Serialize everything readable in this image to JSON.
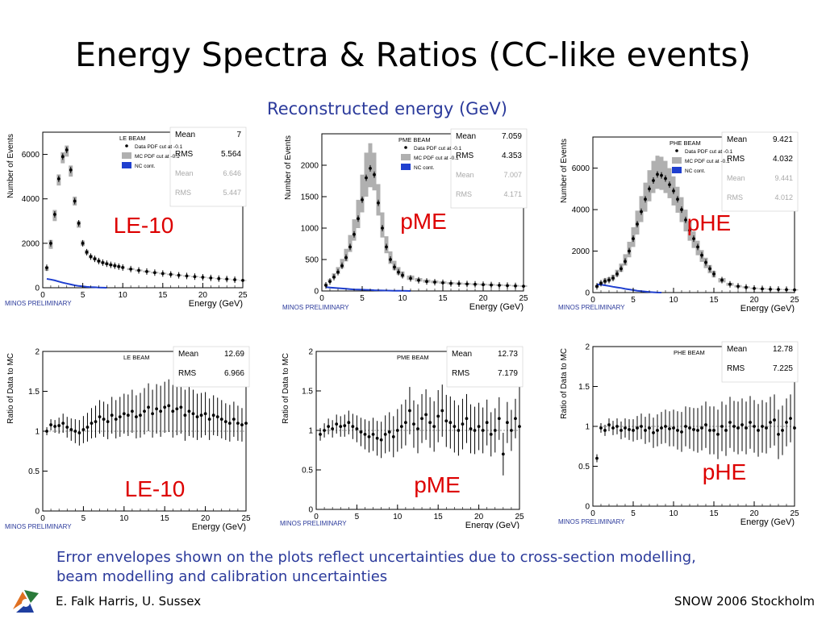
{
  "slide": {
    "title": "Energy Spectra & Ratios (CC-like events)",
    "subtitle": "Reconstructed energy (GeV)",
    "caption_line1": "Error envelopes shown on the plots reflect uncertainties due to cross-section modelling,",
    "caption_line2": "beam modelling and calibration uncertainties",
    "footer_left": "E. Falk Harris, U. Sussex",
    "footer_right": "SNOW 2006 Stockholm"
  },
  "colors": {
    "accent_text": "#2b3a9b",
    "overlay_red": "#dd0000",
    "mc_band": "#b0b0b0",
    "nc_blue": "#1f3fcf"
  },
  "chart_data": [
    {
      "type": "scatter",
      "beam": "LE BEAM",
      "overlay": "LE-10",
      "xlabel": "Energy (GeV)",
      "ylabel": "Number of Events",
      "xlim": [
        0,
        25
      ],
      "ylim": [
        0,
        7000
      ],
      "xticks": [
        0,
        5,
        10,
        15,
        20,
        25
      ],
      "yticks": [
        0,
        2000,
        4000,
        6000
      ],
      "stats": [
        {
          "k": "Mean",
          "v": "7",
          "dim": false
        },
        {
          "k": "RMS",
          "v": "5.564",
          "dim": false
        },
        {
          "k": "Mean",
          "v": "6.646",
          "dim": true
        },
        {
          "k": "RMS",
          "v": "5.447",
          "dim": true
        }
      ],
      "legend": [
        "Data PDF cut at -0.1",
        "MC   PDF cut at -0.1",
        "NC cont."
      ],
      "watermark": "MINOS PRELIMINARY",
      "x": [
        0.5,
        1,
        1.5,
        2,
        2.5,
        3,
        3.5,
        4,
        4.5,
        5,
        5.5,
        6,
        6.5,
        7,
        7.5,
        8,
        8.5,
        9,
        9.5,
        10,
        11,
        12,
        13,
        14,
        15,
        16,
        17,
        18,
        19,
        20,
        21,
        22,
        23,
        24,
        25
      ],
      "data": [
        900,
        2000,
        3300,
        4900,
        5900,
        6200,
        5300,
        3900,
        2900,
        2000,
        1600,
        1400,
        1300,
        1200,
        1130,
        1080,
        1030,
        990,
        950,
        910,
        840,
        780,
        730,
        680,
        640,
        600,
        560,
        530,
        500,
        470,
        440,
        410,
        390,
        360,
        330
      ],
      "mc_lo": [
        760,
        1750,
        3000,
        4600,
        5600,
        5900,
        5000,
        3700,
        2700,
        1880,
        1500,
        1320,
        1230,
        1130,
        1070,
        1020,
        975,
        935,
        895,
        860,
        795,
        740,
        690,
        645,
        605,
        568,
        530,
        502,
        474,
        446,
        418,
        390,
        370,
        342,
        314
      ],
      "mc_hi": [
        960,
        2150,
        3500,
        5100,
        6100,
        6400,
        5500,
        4100,
        3000,
        2120,
        1700,
        1480,
        1370,
        1270,
        1190,
        1140,
        1085,
        1045,
        1005,
        960,
        885,
        820,
        770,
        715,
        675,
        632,
        590,
        558,
        526,
        494,
        462,
        430,
        410,
        378,
        346
      ],
      "nc": [
        400,
        370,
        330,
        280,
        230,
        190,
        150,
        110,
        80,
        60,
        40,
        30,
        20,
        10,
        5,
        0
      ]
    },
    {
      "type": "scatter",
      "beam": "PME BEAM",
      "overlay": "pME",
      "xlabel": "Energy (GeV)",
      "ylabel": "Number of Events",
      "xlim": [
        0,
        25
      ],
      "ylim": [
        0,
        2500
      ],
      "xticks": [
        0,
        5,
        10,
        15,
        20,
        25
      ],
      "yticks": [
        0,
        500,
        1000,
        1500,
        2000
      ],
      "stats": [
        {
          "k": "Mean",
          "v": "7.059",
          "dim": false
        },
        {
          "k": "RMS",
          "v": "4.353",
          "dim": false
        },
        {
          "k": "Mean",
          "v": "7.007",
          "dim": true
        },
        {
          "k": "RMS",
          "v": "4.171",
          "dim": true
        }
      ],
      "legend": [
        "Data PDF cut at -0.1",
        "MC   PDF cut at -0.1",
        "NC cont."
      ],
      "watermark": "MINOS PRELIMINARY",
      "x": [
        0.5,
        1,
        1.5,
        2,
        2.5,
        3,
        3.5,
        4,
        4.5,
        5,
        5.5,
        6,
        6.5,
        7,
        7.5,
        8,
        8.5,
        9,
        9.5,
        10,
        11,
        12,
        13,
        14,
        15,
        16,
        17,
        18,
        19,
        20,
        21,
        22,
        23,
        24,
        25
      ],
      "data": [
        90,
        150,
        220,
        300,
        400,
        530,
        700,
        900,
        1150,
        1450,
        1800,
        1950,
        1850,
        1400,
        1000,
        700,
        500,
        380,
        300,
        250,
        200,
        170,
        150,
        140,
        130,
        120,
        115,
        110,
        105,
        100,
        95,
        90,
        85,
        80,
        75
      ],
      "mc_lo": [
        80,
        140,
        200,
        270,
        360,
        470,
        620,
        800,
        1000,
        1250,
        1500,
        1650,
        1600,
        1200,
        850,
        600,
        430,
        330,
        260,
        215,
        175,
        150,
        133,
        123,
        115,
        106,
        101,
        97,
        93,
        88,
        84,
        80,
        76,
        71,
        67
      ],
      "mc_hi": [
        120,
        190,
        280,
        380,
        510,
        670,
        890,
        1140,
        1450,
        1850,
        2200,
        2350,
        2200,
        1700,
        1250,
        870,
        630,
        480,
        380,
        310,
        245,
        205,
        180,
        165,
        152,
        140,
        134,
        128,
        122,
        117,
        111,
        106,
        100,
        94,
        88
      ],
      "nc": [
        60,
        55,
        50,
        45,
        40,
        35,
        30,
        25,
        22,
        20,
        18,
        15,
        12,
        10,
        8,
        6,
        5,
        4,
        3,
        2,
        1,
        0
      ]
    },
    {
      "type": "scatter",
      "beam": "PHE BEAM",
      "overlay": "pHE",
      "xlabel": "Energy (GeV)",
      "ylabel": "Number of Events",
      "xlim": [
        0,
        25
      ],
      "ylim": [
        0,
        7500
      ],
      "xticks": [
        0,
        5,
        10,
        15,
        20,
        25
      ],
      "yticks": [
        0,
        2000,
        4000,
        6000
      ],
      "stats": [
        {
          "k": "Mean",
          "v": "9.421",
          "dim": false
        },
        {
          "k": "RMS",
          "v": "4.032",
          "dim": false
        },
        {
          "k": "Mean",
          "v": "9.441",
          "dim": true
        },
        {
          "k": "RMS",
          "v": "4.012",
          "dim": true
        }
      ],
      "legend": [
        "Data PDF cut at -0.1",
        "MC   PDF cut at -0.1",
        "NC cont."
      ],
      "watermark": "MINOS PRELIMINARY",
      "x": [
        0.5,
        1,
        1.5,
        2,
        2.5,
        3,
        3.5,
        4,
        4.5,
        5,
        5.5,
        6,
        6.5,
        7,
        7.5,
        8,
        8.5,
        9,
        9.5,
        10,
        10.5,
        11,
        11.5,
        12,
        12.5,
        13,
        13.5,
        14,
        14.5,
        15,
        16,
        17,
        18,
        19,
        20,
        21,
        22,
        23,
        24,
        25
      ],
      "data": [
        300,
        450,
        550,
        600,
        700,
        900,
        1150,
        1500,
        2000,
        2600,
        3300,
        3900,
        4500,
        5000,
        5400,
        5700,
        5650,
        5500,
        5200,
        4900,
        4500,
        4000,
        3500,
        3000,
        2600,
        2200,
        1800,
        1450,
        1150,
        900,
        600,
        400,
        300,
        250,
        200,
        180,
        160,
        150,
        140,
        130
      ],
      "mc_lo": [
        230,
        350,
        450,
        520,
        600,
        780,
        1000,
        1300,
        1700,
        2200,
        2800,
        3400,
        3900,
        4400,
        4800,
        5000,
        4950,
        4800,
        4550,
        4200,
        3850,
        3400,
        2950,
        2500,
        2150,
        1800,
        1480,
        1180,
        930,
        730,
        490,
        330,
        250,
        210,
        170,
        150,
        135,
        125,
        115,
        105
      ],
      "mc_hi": [
        370,
        540,
        680,
        740,
        860,
        1100,
        1400,
        1850,
        2450,
        3150,
        3950,
        4650,
        5300,
        5900,
        6350,
        6600,
        6550,
        6350,
        6000,
        5600,
        5100,
        4600,
        4000,
        3450,
        2950,
        2500,
        2050,
        1680,
        1330,
        1050,
        700,
        470,
        360,
        300,
        240,
        215,
        195,
        180,
        168,
        156
      ],
      "nc": [
        400,
        380,
        350,
        320,
        280,
        250,
        220,
        180,
        150,
        120,
        90,
        70,
        50,
        30,
        15,
        5,
        0
      ]
    },
    {
      "type": "scatter",
      "beam": "LE BEAM",
      "overlay": "LE-10",
      "xlabel": "Energy (GeV)",
      "ylabel": "Ratio of Data to MC",
      "xlim": [
        0,
        25
      ],
      "ylim": [
        0,
        2
      ],
      "xticks": [
        0,
        5,
        10,
        15,
        20,
        25
      ],
      "yticks": [
        0,
        0.5,
        1,
        1.5,
        2
      ],
      "stats": [
        {
          "k": "Mean",
          "v": "12.69",
          "dim": false
        },
        {
          "k": "RMS",
          "v": "6.966",
          "dim": false
        }
      ],
      "watermark": "MINOS PRELIMINARY",
      "x": [
        0.5,
        1,
        1.5,
        2,
        2.5,
        3,
        3.5,
        4,
        4.5,
        5,
        5.5,
        6,
        6.5,
        7,
        7.5,
        8,
        8.5,
        9,
        9.5,
        10,
        10.5,
        11,
        11.5,
        12,
        12.5,
        13,
        13.5,
        14,
        14.5,
        15,
        15.5,
        16,
        16.5,
        17,
        17.5,
        18,
        18.5,
        19,
        19.5,
        20,
        20.5,
        21,
        21.5,
        22,
        22.5,
        23,
        23.5,
        24,
        24.5,
        25
      ],
      "y": [
        1.0,
        1.08,
        1.06,
        1.07,
        1.1,
        1.05,
        1.02,
        1.0,
        0.98,
        1.02,
        1.05,
        1.1,
        1.12,
        1.18,
        1.15,
        1.12,
        1.2,
        1.15,
        1.18,
        1.22,
        1.2,
        1.25,
        1.18,
        1.2,
        1.25,
        1.3,
        1.22,
        1.28,
        1.25,
        1.3,
        1.32,
        1.25,
        1.28,
        1.3,
        1.2,
        1.25,
        1.22,
        1.18,
        1.2,
        1.22,
        1.15,
        1.2,
        1.18,
        1.15,
        1.12,
        1.1,
        1.15,
        1.1,
        1.08,
        1.1
      ],
      "err": [
        0.05,
        0.07,
        0.08,
        0.1,
        0.12,
        0.13,
        0.14,
        0.15,
        0.16,
        0.17,
        0.18,
        0.19,
        0.2,
        0.21,
        0.22,
        0.22,
        0.23,
        0.24,
        0.25,
        0.25,
        0.26,
        0.27,
        0.27,
        0.28,
        0.29,
        0.3,
        0.3,
        0.31,
        0.32,
        0.32,
        0.33,
        0.33,
        0.33,
        0.33,
        0.32,
        0.31,
        0.3,
        0.29,
        0.28,
        0.27,
        0.26,
        0.25,
        0.24,
        0.24,
        0.23,
        0.23,
        0.22,
        0.22,
        0.21,
        0.21
      ]
    },
    {
      "type": "scatter",
      "beam": "PME BEAM",
      "overlay": "pME",
      "xlabel": "Energy (GeV)",
      "ylabel": "Ratio of Data to MC",
      "xlim": [
        0,
        25
      ],
      "ylim": [
        0,
        2
      ],
      "xticks": [
        0,
        5,
        10,
        15,
        20,
        25
      ],
      "yticks": [
        0,
        0.5,
        1,
        1.5,
        2
      ],
      "stats": [
        {
          "k": "Mean",
          "v": "12.73",
          "dim": false
        },
        {
          "k": "RMS",
          "v": "7.179",
          "dim": false
        }
      ],
      "watermark": "MINOS PRELIMINARY",
      "x": [
        0.5,
        1,
        1.5,
        2,
        2.5,
        3,
        3.5,
        4,
        4.5,
        5,
        5.5,
        6,
        6.5,
        7,
        7.5,
        8,
        8.5,
        9,
        9.5,
        10,
        10.5,
        11,
        11.5,
        12,
        12.5,
        13,
        13.5,
        14,
        14.5,
        15,
        15.5,
        16,
        16.5,
        17,
        17.5,
        18,
        18.5,
        19,
        19.5,
        20,
        20.5,
        21,
        21.5,
        22,
        22.5,
        23,
        23.5,
        24,
        24.5,
        25
      ],
      "y": [
        0.95,
        1.0,
        1.05,
        1.02,
        1.08,
        1.05,
        1.06,
        1.1,
        1.05,
        1.02,
        0.98,
        0.95,
        0.92,
        0.95,
        0.9,
        0.88,
        0.95,
        0.98,
        0.92,
        1.0,
        1.05,
        1.1,
        1.25,
        1.08,
        1.02,
        1.15,
        1.2,
        1.1,
        1.05,
        1.18,
        1.25,
        1.12,
        1.1,
        1.05,
        1.0,
        1.08,
        1.15,
        1.02,
        1.0,
        1.05,
        1.0,
        1.1,
        0.95,
        1.0,
        1.15,
        0.7,
        1.1,
        1.0,
        1.15,
        1.05
      ],
      "err": [
        0.08,
        0.09,
        0.1,
        0.11,
        0.12,
        0.13,
        0.14,
        0.15,
        0.16,
        0.17,
        0.18,
        0.19,
        0.2,
        0.21,
        0.22,
        0.23,
        0.24,
        0.25,
        0.26,
        0.27,
        0.28,
        0.29,
        0.3,
        0.3,
        0.31,
        0.31,
        0.32,
        0.32,
        0.32,
        0.33,
        0.33,
        0.33,
        0.33,
        0.33,
        0.32,
        0.32,
        0.31,
        0.31,
        0.3,
        0.3,
        0.29,
        0.29,
        0.28,
        0.28,
        0.27,
        0.27,
        0.26,
        0.26,
        0.25,
        0.25
      ]
    },
    {
      "type": "scatter",
      "beam": "PHE BEAM",
      "overlay": "pHE",
      "xlabel": "Energy (GeV)",
      "ylabel": "Ratio of Data to MC",
      "xlim": [
        0,
        25
      ],
      "ylim": [
        0,
        2
      ],
      "xticks": [
        0,
        5,
        10,
        15,
        20,
        25
      ],
      "yticks": [
        0,
        0.5,
        1,
        1.5,
        2
      ],
      "stats": [
        {
          "k": "Mean",
          "v": "12.78",
          "dim": false
        },
        {
          "k": "RMS",
          "v": "7.225",
          "dim": false
        }
      ],
      "watermark": "MINOS PRELIMINARY",
      "x": [
        0.5,
        1,
        1.5,
        2,
        2.5,
        3,
        3.5,
        4,
        4.5,
        5,
        5.5,
        6,
        6.5,
        7,
        7.5,
        8,
        8.5,
        9,
        9.5,
        10,
        10.5,
        11,
        11.5,
        12,
        12.5,
        13,
        13.5,
        14,
        14.5,
        15,
        15.5,
        16,
        16.5,
        17,
        17.5,
        18,
        18.5,
        19,
        19.5,
        20,
        20.5,
        21,
        21.5,
        22,
        22.5,
        23,
        23.5,
        24,
        24.5,
        25
      ],
      "y": [
        0.6,
        0.98,
        0.95,
        1.02,
        0.98,
        1.0,
        0.95,
        0.98,
        0.96,
        0.95,
        0.98,
        1.0,
        0.95,
        0.98,
        0.92,
        0.95,
        0.98,
        1.0,
        0.97,
        0.98,
        0.95,
        0.93,
        1.0,
        0.98,
        0.96,
        0.95,
        0.98,
        1.02,
        0.95,
        0.95,
        0.9,
        1.0,
        0.95,
        1.05,
        1.0,
        0.98,
        1.02,
        0.98,
        1.05,
        1.0,
        0.95,
        1.0,
        0.98,
        1.05,
        1.08,
        0.9,
        0.95,
        1.05,
        1.1,
        0.98
      ],
      "err": [
        0.05,
        0.06,
        0.07,
        0.08,
        0.09,
        0.1,
        0.11,
        0.12,
        0.13,
        0.14,
        0.15,
        0.16,
        0.17,
        0.18,
        0.19,
        0.2,
        0.2,
        0.21,
        0.22,
        0.23,
        0.24,
        0.25,
        0.25,
        0.26,
        0.27,
        0.28,
        0.28,
        0.29,
        0.3,
        0.3,
        0.31,
        0.31,
        0.32,
        0.32,
        0.32,
        0.33,
        0.33,
        0.33,
        0.33,
        0.33,
        0.33,
        0.33,
        0.32,
        0.32,
        0.32,
        0.31,
        0.31,
        0.3,
        0.3,
        0.3
      ]
    }
  ]
}
